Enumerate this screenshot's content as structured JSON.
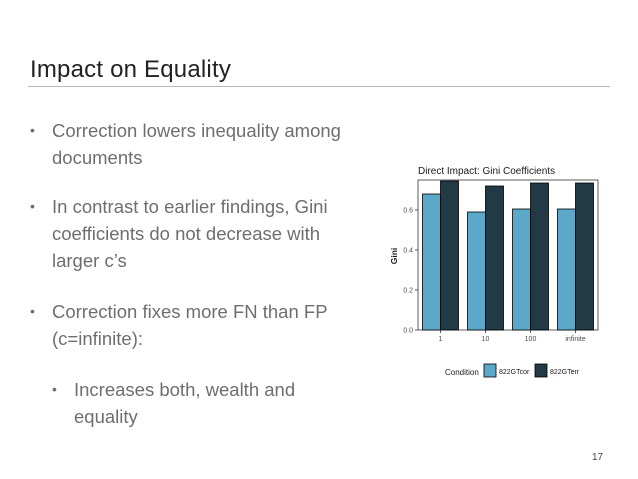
{
  "slide": {
    "title": "Impact on Equality",
    "page_number": "17",
    "bullets": [
      {
        "lines": [
          "Correction lowers inequality among",
          "documents"
        ]
      },
      {
        "lines": [
          "In contrast to earlier findings, Gini",
          "coefficients do not decrease with",
          "larger c’s"
        ]
      },
      {
        "lines": [
          "Correction fixes more FN than FP",
          "(c=infinite):"
        ]
      },
      {
        "lines": [
          "Increases both, wealth and",
          "equality"
        ],
        "sub": true
      }
    ]
  },
  "chart_data": {
    "type": "bar",
    "title": "Direct Impact: Gini Coefficients",
    "xlabel": "",
    "ylabel": "Gini",
    "categories": [
      "1",
      "10",
      "100",
      "infinite"
    ],
    "series": [
      {
        "name": "822GTcor",
        "values": [
          0.68,
          0.59,
          0.605,
          0.605
        ],
        "color": "#5ba8c9"
      },
      {
        "name": "822GTerr",
        "values": [
          0.745,
          0.72,
          0.735,
          0.735
        ],
        "color": "#213a45"
      }
    ],
    "ylim": [
      0,
      0.75
    ],
    "yticks": [
      0.0,
      0.2,
      0.4,
      0.6
    ],
    "ytick_labels": [
      "0.0",
      "0.2",
      "0.4",
      "0.6"
    ],
    "legend_title": "Condition",
    "legend_position": "bottom",
    "grid": false
  }
}
